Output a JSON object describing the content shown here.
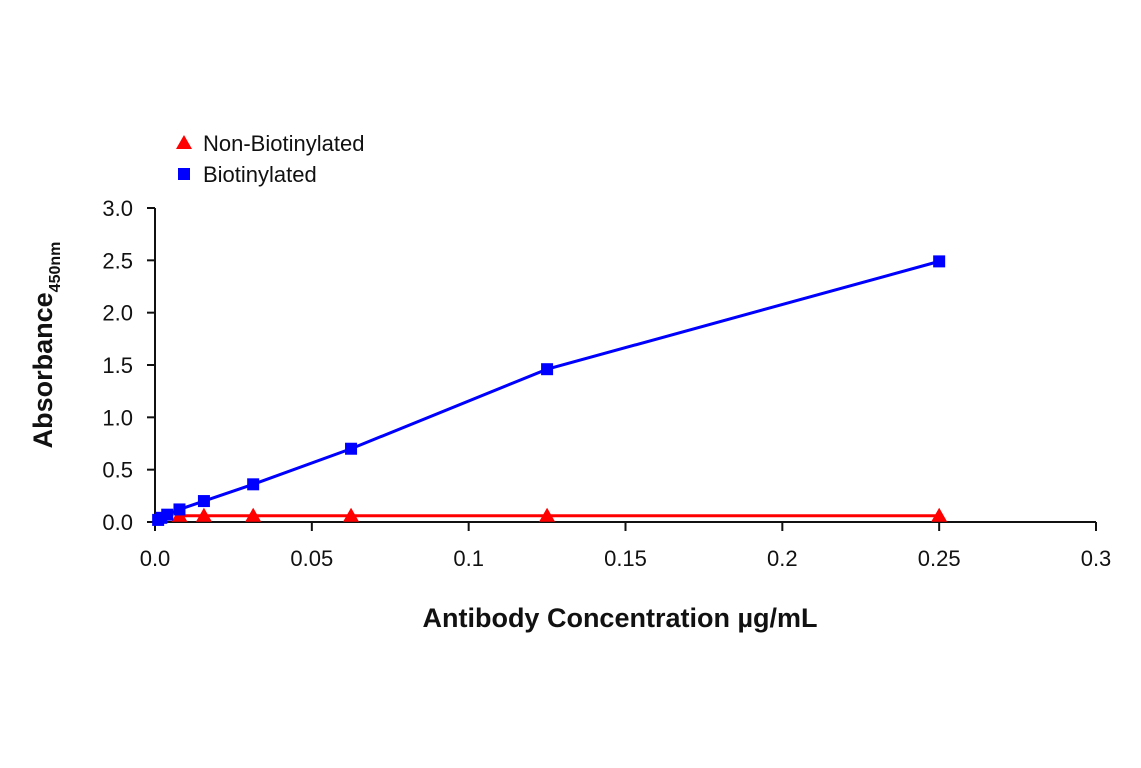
{
  "chart_data": {
    "type": "line",
    "xlabel": "Antibody Concentration µg/mL",
    "ylabel": "Absorbance",
    "ylabel_subscript": "450nm",
    "xlim": [
      0,
      0.3
    ],
    "ylim": [
      0,
      3.0
    ],
    "x_ticks": [
      0,
      0.05,
      0.1,
      0.15,
      0.2,
      0.25,
      0.3
    ],
    "x_tick_labels": [
      "0.0",
      "0.05",
      "0.1",
      "0.15",
      "0.2",
      "0.25",
      "0.3"
    ],
    "y_ticks": [
      0,
      0.5,
      1.0,
      1.5,
      2.0,
      2.5,
      3.0
    ],
    "y_tick_labels": [
      "0.0",
      "0.5",
      "1.0",
      "1.5",
      "2.0",
      "2.5",
      "3.0"
    ],
    "grid": false,
    "legend_position": "top-left",
    "series": [
      {
        "name": "Non-Biotinylated",
        "color": "#ff0000",
        "marker": "triangle",
        "x": [
          0.0078,
          0.0156,
          0.0313,
          0.0625,
          0.125,
          0.25
        ],
        "y": [
          0.06,
          0.06,
          0.06,
          0.06,
          0.06,
          0.06
        ]
      },
      {
        "name": "Biotinylated",
        "color": "#0000ff",
        "marker": "square",
        "x": [
          0.001,
          0.002,
          0.0039,
          0.0078,
          0.0156,
          0.0313,
          0.0625,
          0.125,
          0.25
        ],
        "y": [
          0.02,
          0.04,
          0.07,
          0.12,
          0.2,
          0.36,
          0.7,
          1.46,
          2.49
        ]
      }
    ]
  }
}
